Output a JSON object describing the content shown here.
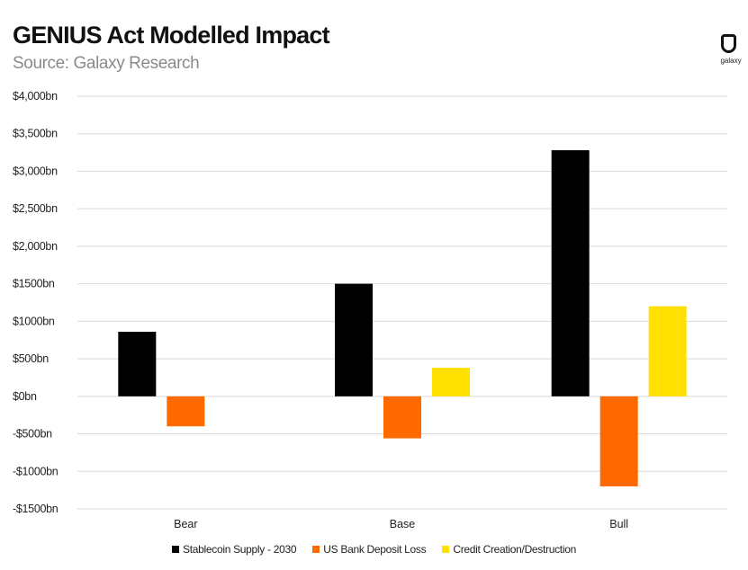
{
  "header": {
    "title": "GENIUS Act Modelled Impact",
    "subtitle": "Source: Galaxy Research"
  },
  "logo": {
    "text": "galaxy",
    "icon": "galaxy-logo-icon"
  },
  "chart_data": {
    "type": "bar",
    "title": "GENIUS Act Modelled Impact",
    "subtitle": "Source: Galaxy Research",
    "categories": [
      "Bear",
      "Base",
      "Bull"
    ],
    "series": [
      {
        "name": "Stablecoin Supply - 2030",
        "color": "#000000",
        "values": [
          860,
          1500,
          3280
        ]
      },
      {
        "name": "US Bank Deposit Loss",
        "color": "#FF6A00",
        "values": [
          -400,
          -560,
          -1200
        ]
      },
      {
        "name": "Credit Creation/Destruction",
        "color": "#FFE000",
        "values": [
          null,
          380,
          1200
        ]
      }
    ],
    "ylim": [
      -1500,
      4000
    ],
    "yticks": [
      4000,
      3500,
      3000,
      2500,
      2000,
      1500,
      1000,
      500,
      0,
      -500,
      -1000,
      -1500
    ],
    "ytick_labels": [
      "$4,000bn",
      "$3,500bn",
      "$3,000bn",
      "$2,500bn",
      "$2,000bn",
      "$1500bn",
      "$1000bn",
      "$500bn",
      "$0bn",
      "-$500bn",
      "-$1000bn",
      "-$1500bn"
    ],
    "grid": true,
    "legend_position": "bottom"
  }
}
